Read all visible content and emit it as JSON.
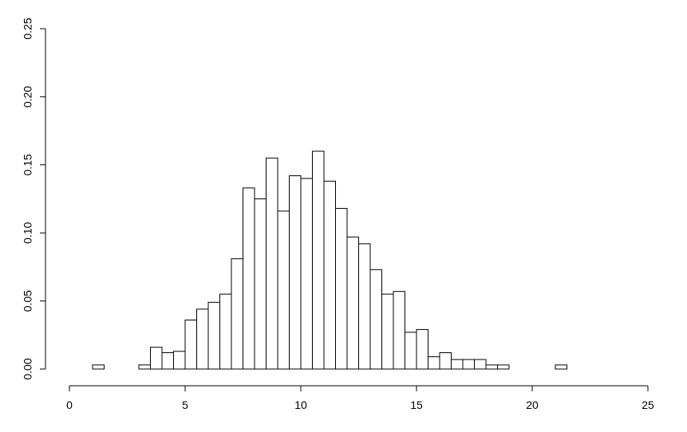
{
  "chart_data": {
    "type": "histogram",
    "bins": [
      0,
      0.5,
      1,
      1.5,
      2,
      2.5,
      3,
      3.5,
      4,
      4.5,
      5,
      5.5,
      6,
      6.5,
      7,
      7.5,
      8,
      8.5,
      9,
      9.5,
      10,
      10.5,
      11,
      11.5,
      12,
      12.5,
      13,
      13.5,
      14,
      14.5,
      15,
      15.5,
      16,
      16.5,
      17,
      17.5,
      18,
      18.5,
      19,
      19.5,
      20,
      20.5,
      21,
      21.5,
      22,
      22.5,
      23,
      23.5,
      24,
      24.5,
      25
    ],
    "values": [
      0,
      0,
      0.003,
      0,
      0,
      0,
      0.003,
      0.016,
      0.012,
      0.013,
      0.036,
      0.044,
      0.049,
      0.055,
      0.081,
      0.133,
      0.125,
      0.155,
      0.116,
      0.142,
      0.14,
      0.16,
      0.138,
      0.118,
      0.097,
      0.092,
      0.073,
      0.055,
      0.057,
      0.027,
      0.029,
      0.009,
      0.012,
      0.007,
      0.007,
      0.007,
      0.003,
      0.003,
      0,
      0,
      0,
      0,
      0.003,
      0,
      0,
      0,
      0,
      0,
      0,
      0
    ],
    "color": "#ffffff",
    "xlim": [
      0,
      25
    ],
    "xticks": [
      0,
      5,
      10,
      15,
      20,
      25
    ],
    "ylim": [
      0,
      0.25
    ],
    "yticks": [
      {
        "value": 0,
        "label": "0.00"
      },
      0.05,
      {
        "value": 0.1,
        "label": "0.10"
      },
      0.15,
      {
        "value": 0.2,
        "label": "0.20"
      },
      0.25
    ]
  }
}
